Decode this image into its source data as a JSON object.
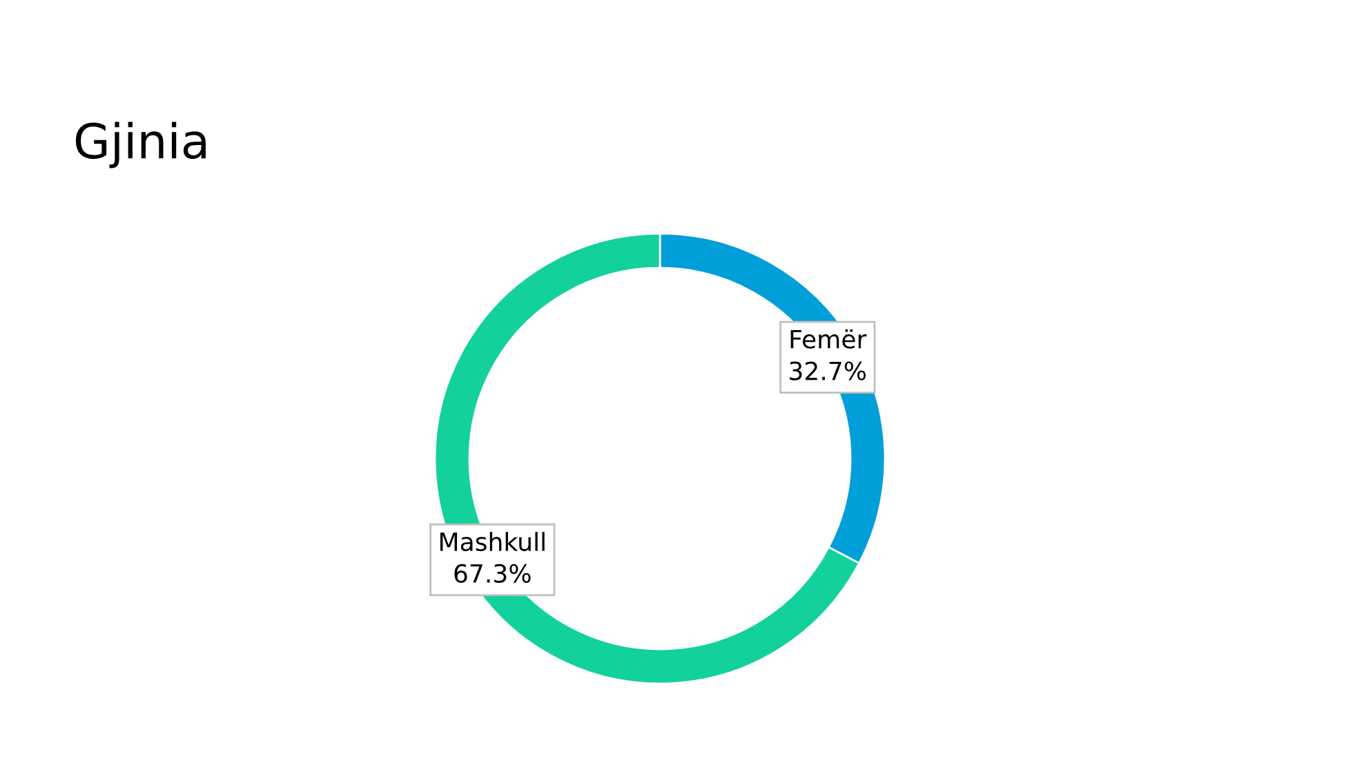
{
  "chart_data": {
    "type": "donut",
    "title": "Gjinia",
    "categories": [
      "Femër",
      "Mashkull"
    ],
    "values": [
      32.7,
      67.3
    ],
    "value_labels": [
      "32.7%",
      "67.3%"
    ],
    "colors": [
      "#009fda",
      "#13d19b"
    ]
  }
}
